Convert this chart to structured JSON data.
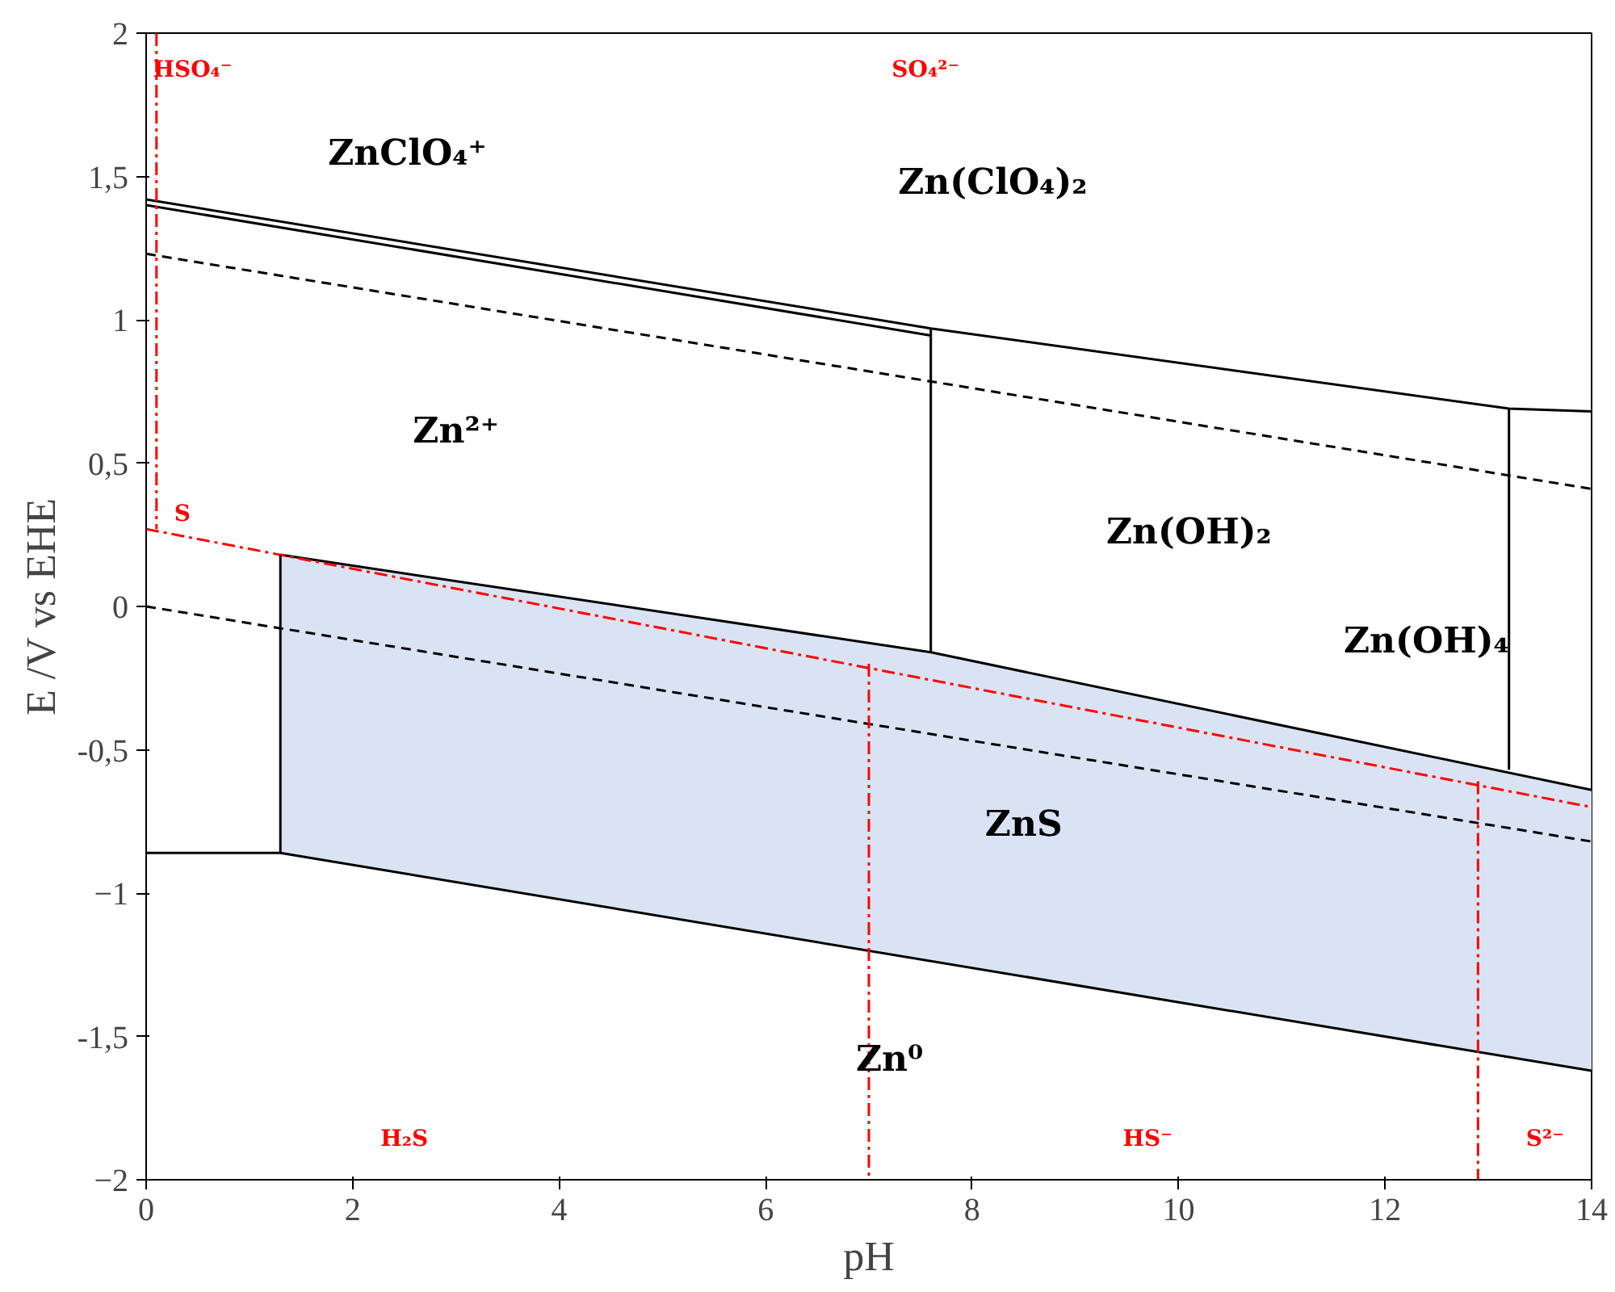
{
  "chart_data": {
    "type": "line",
    "xlabel": "pH",
    "ylabel": "E /V vs EHE",
    "xlim": [
      0,
      14
    ],
    "ylim": [
      -2,
      2
    ],
    "xticks": [
      0,
      2,
      4,
      6,
      8,
      10,
      12,
      14
    ],
    "yticks": [
      -2,
      {
        "value": -1.5,
        "label": "-1,5"
      },
      -1,
      {
        "value": -0.5,
        "label": "-0,5"
      },
      0,
      {
        "value": 0.5,
        "label": "0,5"
      },
      1,
      {
        "value": 1.5,
        "label": "1,5"
      },
      2
    ],
    "grid": false,
    "marker": "none",
    "series": [
      {
        "color": "#000000",
        "line_style": "solid",
        "x": [
          1.3,
          7.6,
          14
        ],
        "values": [
          0.18,
          -0.16,
          -0.64
        ],
        "lower": [
          -0.86,
          -1.24,
          -1.62
        ],
        "upper": [
          0.18,
          -0.16,
          -0.64
        ]
      },
      {
        "color": "#000000",
        "line_style": "solid",
        "x": [
          0,
          7.6,
          13.2,
          14
        ],
        "values": [
          1.42,
          0.97,
          0.69,
          0.68
        ]
      },
      {
        "color": "#000000",
        "line_style": "solid",
        "x": [
          0,
          7.6
        ],
        "values": [
          1.4,
          0.945
        ]
      },
      {
        "color": "#000000",
        "line_style": "dashed",
        "x": [
          0,
          14
        ],
        "values": [
          1.23,
          0.41
        ]
      },
      {
        "color": "#000000",
        "line_style": "dashed",
        "x": [
          0,
          14
        ],
        "values": [
          0,
          -0.82
        ]
      },
      {
        "color": "#ff0000",
        "line_style": "dashdot",
        "x": [
          0,
          14
        ],
        "values": [
          0.27,
          -0.7
        ]
      },
      {
        "color": "#000000",
        "line_style": "solid",
        "x": [
          0,
          1.3,
          1.3
        ],
        "values": [
          -0.86,
          -0.86,
          0.18
        ]
      },
      {
        "color": "#000000",
        "line_style": "solid",
        "x": [
          1.3,
          14
        ],
        "values": [
          -0.86,
          -1.62
        ]
      },
      {
        "color": "#000000",
        "line_style": "solid",
        "x": [
          7.6,
          7.6
        ],
        "values": [
          -0.16,
          0.97
        ]
      },
      {
        "color": "#000000",
        "line_style": "solid",
        "x": [
          13.2,
          13.2
        ],
        "values": [
          -0.57,
          0.69
        ]
      },
      {
        "color": "#ff0000",
        "line_style": "dashdot",
        "x": [
          0.1,
          0.1
        ],
        "values": [
          2,
          0.27
        ]
      },
      {
        "color": "#ff0000",
        "line_style": "dashdot",
        "x": [
          7,
          7
        ],
        "values": [
          -0.2,
          -2
        ]
      },
      {
        "color": "#ff0000",
        "line_style": "dashdot",
        "x": [
          12.9,
          12.9
        ],
        "values": [
          -0.61,
          -2
        ]
      }
    ],
    "annotations": [
      "HSO₄⁻",
      "SO₄²⁻",
      "ZnClO₄⁺",
      "Zn(ClO₄)₂",
      "Zn²⁺",
      "Zn(OH)₂",
      "Zn(OH)₄",
      "ZnS",
      "Zn⁰",
      "S",
      "H₂S",
      "HS⁻",
      "S²⁻"
    ]
  }
}
